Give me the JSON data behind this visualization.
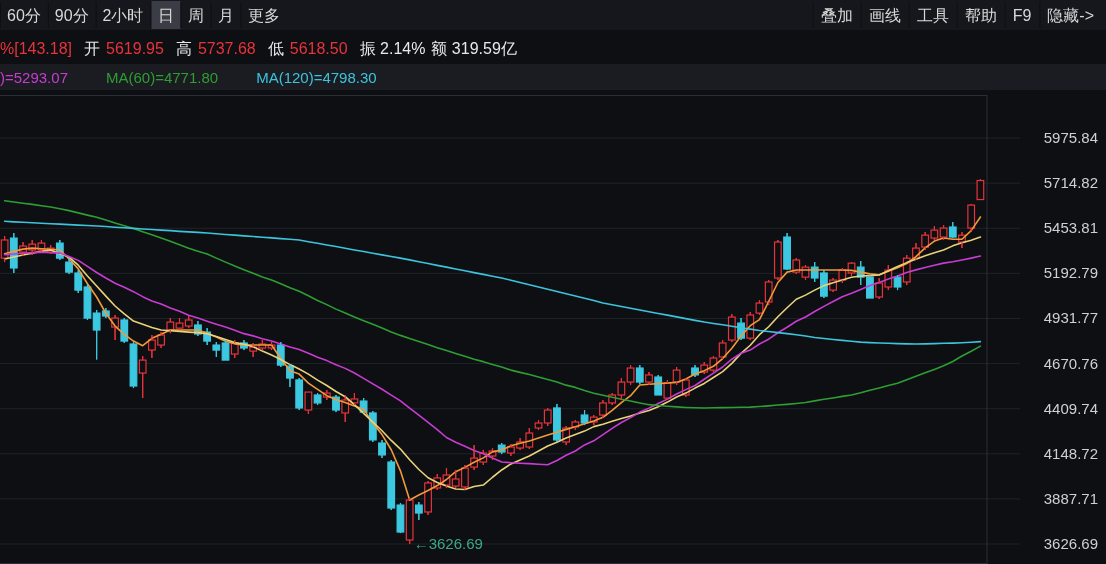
{
  "chart_data": {
    "type": "candlestick",
    "categories": [
      null,
      null,
      null,
      null,
      null,
      null,
      null,
      null,
      null,
      null,
      null,
      null,
      null,
      null,
      null,
      null,
      null,
      null,
      null,
      null,
      null,
      null,
      null,
      null,
      null,
      null,
      null,
      null,
      null,
      null,
      null,
      null,
      null,
      null,
      null,
      null,
      null,
      null,
      null,
      null,
      null,
      null,
      null,
      null,
      null,
      null,
      null,
      null,
      null,
      null,
      null,
      null,
      null,
      null,
      null,
      null,
      null,
      null,
      null,
      null,
      null,
      null,
      null,
      null,
      null,
      null,
      null,
      null,
      null,
      null,
      null,
      null,
      null,
      null,
      null,
      null,
      null,
      null,
      null,
      null,
      null,
      null,
      null,
      null,
      null,
      null,
      null,
      null,
      null,
      null,
      null,
      null,
      null,
      null,
      null,
      null,
      null,
      null,
      null,
      null,
      null,
      null,
      null,
      null,
      null,
      null,
      null
    ],
    "ohlc": [
      [
        5281,
        5409,
        5258,
        5386
      ],
      [
        5397,
        5426,
        5195,
        5224
      ],
      [
        5316,
        5374,
        5293,
        5351
      ],
      [
        5328,
        5386,
        5299,
        5362
      ],
      [
        5328,
        5386,
        5316,
        5368
      ],
      [
        5316,
        5357,
        5305,
        5339
      ],
      [
        5368,
        5386,
        5270,
        5281
      ],
      [
        5258,
        5281,
        5189,
        5200
      ],
      [
        5195,
        5212,
        5079,
        5096
      ],
      [
        5114,
        5131,
        4923,
        4934
      ],
      [
        4963,
        4981,
        4694,
        4865
      ],
      [
        4975,
        4992,
        4934,
        4946
      ],
      [
        4882,
        4952,
        4807,
        4934
      ],
      [
        4923,
        4934,
        4790,
        4801
      ],
      [
        4784,
        4795,
        4529,
        4541
      ],
      [
        4616,
        4714,
        4471,
        4691
      ],
      [
        4749,
        4836,
        4703,
        4807
      ],
      [
        4778,
        4853,
        4761,
        4836
      ],
      [
        4865,
        4934,
        4847,
        4911
      ],
      [
        4876,
        4934,
        4865,
        4905
      ],
      [
        4888,
        4946,
        4876,
        4923
      ],
      [
        4894,
        4917,
        4830,
        4842
      ],
      [
        4853,
        4876,
        4778,
        4801
      ],
      [
        4778,
        4795,
        4709,
        4749
      ],
      [
        4790,
        4807,
        4691,
        4691
      ],
      [
        4726,
        4807,
        4703,
        4790
      ],
      [
        4790,
        4807,
        4749,
        4761
      ],
      [
        4743,
        4790,
        4709,
        4766
      ],
      [
        4761,
        4807,
        4749,
        4784
      ],
      [
        4761,
        4795,
        4749,
        4778
      ],
      [
        4778,
        4795,
        4651,
        4662
      ],
      [
        4656,
        4668,
        4535,
        4587
      ],
      [
        4576,
        4587,
        4402,
        4414
      ],
      [
        4402,
        4506,
        4379,
        4506
      ],
      [
        4489,
        4500,
        4431,
        4443
      ],
      [
        4477,
        4518,
        4460,
        4500
      ],
      [
        4477,
        4489,
        4390,
        4402
      ],
      [
        4385,
        4489,
        4333,
        4460
      ],
      [
        4443,
        4500,
        4431,
        4466
      ],
      [
        4454,
        4471,
        4385,
        4390
      ],
      [
        4385,
        4396,
        4217,
        4229
      ],
      [
        4211,
        4229,
        4124,
        4142
      ],
      [
        4101,
        4113,
        3823,
        3835
      ],
      [
        3852,
        3864,
        3690,
        3696
      ],
      [
        3650,
        3893,
        3626.69,
        3881
      ],
      [
        3852,
        3870,
        3766,
        3806
      ],
      [
        3812,
        3991,
        3794,
        3980
      ],
      [
        3951,
        4032,
        3939,
        4009
      ],
      [
        3968,
        4066,
        3951,
        4026
      ],
      [
        3962,
        4055,
        3951,
        4003
      ],
      [
        3957,
        4084,
        3939,
        4066
      ],
      [
        4072,
        4199,
        4055,
        4124
      ],
      [
        4101,
        4171,
        4084,
        4153
      ],
      [
        4136,
        4182,
        4113,
        4165
      ],
      [
        4199,
        4211,
        4147,
        4159
      ],
      [
        4153,
        4205,
        4136,
        4188
      ],
      [
        4182,
        4240,
        4171,
        4217
      ],
      [
        4188,
        4298,
        4176,
        4269
      ],
      [
        4298,
        4344,
        4286,
        4327
      ],
      [
        4327,
        4414,
        4309,
        4402
      ],
      [
        4414,
        4437,
        4217,
        4229
      ],
      [
        4217,
        4309,
        4199,
        4298
      ],
      [
        4304,
        4344,
        4286,
        4333
      ],
      [
        4373,
        4402,
        4315,
        4327
      ],
      [
        4333,
        4373,
        4315,
        4361
      ],
      [
        4373,
        4460,
        4356,
        4443
      ],
      [
        4443,
        4500,
        4431,
        4489
      ],
      [
        4489,
        4587,
        4460,
        4564
      ],
      [
        4564,
        4662,
        4547,
        4645
      ],
      [
        4645,
        4662,
        4552,
        4564
      ],
      [
        4564,
        4622,
        4547,
        4605
      ],
      [
        4593,
        4605,
        4489,
        4489
      ],
      [
        4471,
        4576,
        4460,
        4558
      ],
      [
        4564,
        4651,
        4547,
        4633
      ],
      [
        4489,
        4587,
        4477,
        4576
      ],
      [
        4645,
        4662,
        4593,
        4605
      ],
      [
        4622,
        4680,
        4610,
        4662
      ],
      [
        4633,
        4714,
        4622,
        4703
      ],
      [
        4709,
        4807,
        4697,
        4790
      ],
      [
        4807,
        4957,
        4795,
        4940
      ],
      [
        4905,
        4934,
        4807,
        4818
      ],
      [
        4818,
        4969,
        4807,
        4952
      ],
      [
        4963,
        5038,
        4952,
        5021
      ],
      [
        5027,
        5154,
        5010,
        5143
      ],
      [
        5166,
        5386,
        5154,
        5374
      ],
      [
        5403,
        5426,
        5212,
        5218
      ],
      [
        5200,
        5281,
        5189,
        5270
      ],
      [
        5171,
        5241,
        5154,
        5229
      ],
      [
        5229,
        5258,
        5143,
        5166
      ],
      [
        5195,
        5212,
        5050,
        5061
      ],
      [
        5096,
        5166,
        5085,
        5154
      ],
      [
        5154,
        5224,
        5137,
        5212
      ],
      [
        5195,
        5258,
        5177,
        5252
      ],
      [
        5229,
        5264,
        5125,
        5171
      ],
      [
        5171,
        5183,
        5050,
        5050
      ],
      [
        5056,
        5166,
        5044,
        5137
      ],
      [
        5114,
        5241,
        5096,
        5212
      ],
      [
        5171,
        5183,
        5096,
        5114
      ],
      [
        5143,
        5299,
        5125,
        5281
      ],
      [
        5281,
        5368,
        5270,
        5339
      ],
      [
        5345,
        5432,
        5328,
        5414
      ],
      [
        5397,
        5466,
        5386,
        5443
      ],
      [
        5403,
        5472,
        5386,
        5455
      ],
      [
        5461,
        5490,
        5397,
        5403
      ],
      [
        5374,
        5432,
        5339,
        5414
      ],
      [
        5455,
        5594,
        5432,
        5588
      ],
      [
        5619.95,
        5737.68,
        5618.5,
        5730
      ]
    ],
    "series": [
      {
        "type": "line",
        "color": "#f29a3a",
        "values": [
          5306,
          5320,
          5333,
          5339,
          5335,
          5332,
          5328,
          5277,
          5219,
          5133,
          5056,
          4962,
          4888,
          4840,
          4801,
          4774,
          4817,
          4840,
          4865,
          4865,
          4865,
          4865,
          4846,
          4825,
          4800,
          4785,
          4778,
          4778,
          4778,
          4778,
          4700,
          4630,
          4610,
          4558,
          4521,
          4485,
          4463,
          4445,
          4425,
          4407,
          4325,
          4260,
          4172,
          4050,
          3881,
          3910,
          3936,
          3965,
          4000,
          4045,
          4070,
          4100,
          4125,
          4160,
          4171,
          4195,
          4210,
          4223,
          4240,
          4257,
          4273,
          4290,
          4305,
          4322,
          4338,
          4360,
          4400,
          4445,
          4485,
          4547,
          4551,
          4555,
          4558,
          4562,
          4582,
          4610,
          4630,
          4655,
          4700,
          4760,
          4830,
          4890,
          4925,
          5030,
          5140,
          5200,
          5212,
          5212,
          5212,
          5212,
          5212,
          5212,
          5210,
          5200,
          5190,
          5185,
          5205,
          5225,
          5250,
          5290,
          5340,
          5380,
          5397,
          5390,
          5390,
          5440,
          5519
        ]
      },
      {
        "type": "line",
        "color": "#e8d27a",
        "values": [
          5276,
          5287,
          5299,
          5310,
          5320,
          5328,
          5307,
          5287,
          5240,
          5178,
          5120,
          5061,
          5004,
          4958,
          4917,
          4898,
          4880,
          4865,
          4861,
          4857,
          4853,
          4850,
          4843,
          4827,
          4810,
          4793,
          4783,
          4768,
          4743,
          4720,
          4694,
          4665,
          4639,
          4610,
          4575,
          4544,
          4509,
          4479,
          4433,
          4383,
          4332,
          4282,
          4226,
          4176,
          4114,
          4058,
          4010,
          3983,
          3962,
          3945,
          3942,
          3959,
          3968,
          4013,
          4055,
          4090,
          4113,
          4136,
          4165,
          4194,
          4216,
          4240,
          4260,
          4280,
          4306,
          4320,
          4337,
          4353,
          4367,
          4385,
          4399,
          4421,
          4448,
          4477,
          4500,
          4529,
          4556,
          4590,
          4624,
          4672,
          4730,
          4777,
          4838,
          4884,
          4942,
          4994,
          5043,
          5067,
          5096,
          5122,
          5138,
          5155,
          5170,
          5178,
          5180,
          5183,
          5208,
          5233,
          5255,
          5275,
          5295,
          5312,
          5328,
          5352,
          5370,
          5385,
          5403
        ]
      },
      {
        "type": "line",
        "name": ")=5293.07",
        "color": "#c83cd2",
        "values": [
          5301,
          5305,
          5309,
          5313,
          5316,
          5313,
          5310,
          5290,
          5268,
          5233,
          5198,
          5166,
          5136,
          5113,
          5087,
          5058,
          5033,
          5015,
          4992,
          4974,
          4951,
          4934,
          4916,
          4899,
          4882,
          4864,
          4844,
          4831,
          4815,
          4801,
          4784,
          4767,
          4752,
          4731,
          4708,
          4688,
          4664,
          4643,
          4616,
          4585,
          4553,
          4522,
          4488,
          4455,
          4413,
          4372,
          4330,
          4288,
          4243,
          4216,
          4192,
          4168,
          4149,
          4125,
          4101,
          4097,
          4094,
          4092,
          4088,
          4085,
          4110,
          4140,
          4165,
          4200,
          4224,
          4260,
          4296,
          4330,
          4358,
          4390,
          4413,
          4440,
          4465,
          4495,
          4520,
          4544,
          4580,
          4616,
          4651,
          4696,
          4731,
          4749,
          4784,
          4812,
          4849,
          4881,
          4916,
          4940,
          4972,
          5002,
          5030,
          5058,
          5078,
          5100,
          5122,
          5140,
          5160,
          5178,
          5198,
          5213,
          5227,
          5240,
          5252,
          5260,
          5270,
          5281,
          5293
        ]
      },
      {
        "type": "line",
        "name": "MA(60)=4771.80",
        "color": "#2e9e32",
        "values": [
          5613,
          5606,
          5599,
          5592,
          5584,
          5577,
          5567,
          5556,
          5543,
          5530,
          5518,
          5502,
          5484,
          5468,
          5452,
          5433,
          5416,
          5397,
          5378,
          5358,
          5338,
          5321,
          5305,
          5281,
          5258,
          5235,
          5214,
          5193,
          5172,
          5154,
          5133,
          5110,
          5089,
          5063,
          5036,
          5012,
          4986,
          4963,
          4940,
          4919,
          4898,
          4877,
          4854,
          4834,
          4816,
          4799,
          4781,
          4763,
          4746,
          4729,
          4713,
          4696,
          4682,
          4665,
          4651,
          4633,
          4620,
          4608,
          4593,
          4579,
          4564,
          4546,
          4533,
          4515,
          4499,
          4487,
          4476,
          4464,
          4454,
          4443,
          4433,
          4428,
          4424,
          4420,
          4417,
          4415,
          4414,
          4415,
          4416,
          4417,
          4418,
          4419,
          4422,
          4426,
          4431,
          4435,
          4440,
          4446,
          4455,
          4464,
          4472,
          4481,
          4489,
          4502,
          4517,
          4529,
          4544,
          4557,
          4577,
          4597,
          4617,
          4637,
          4658,
          4683,
          4715,
          4742,
          4772
        ]
      },
      {
        "type": "line",
        "name": "MA(120)=4798.30",
        "color": "#3cc4dc",
        "values": [
          5494,
          5491,
          5489,
          5486,
          5483,
          5480,
          5478,
          5475,
          5472,
          5470,
          5467,
          5464,
          5460,
          5457,
          5453,
          5450,
          5447,
          5443,
          5440,
          5436,
          5433,
          5430,
          5426,
          5422,
          5418,
          5414,
          5410,
          5406,
          5402,
          5398,
          5394,
          5390,
          5386,
          5376,
          5367,
          5357,
          5348,
          5338,
          5328,
          5319,
          5309,
          5300,
          5290,
          5281,
          5271,
          5260,
          5250,
          5239,
          5229,
          5218,
          5208,
          5197,
          5187,
          5176,
          5166,
          5153,
          5140,
          5127,
          5114,
          5101,
          5088,
          5075,
          5062,
          5049,
          5036,
          5021,
          5011,
          5001,
          4991,
          4981,
          4971,
          4961,
          4951,
          4941,
          4931,
          4921,
          4911,
          4903,
          4895,
          4887,
          4878,
          4870,
          4862,
          4856,
          4850,
          4844,
          4838,
          4830,
          4822,
          4816,
          4810,
          4805,
          4800,
          4795,
          4792,
          4790,
          4788,
          4786,
          4785,
          4784,
          4785,
          4786,
          4788,
          4789,
          4791,
          4794,
          4798
        ]
      }
    ],
    "ylim": [
      3511,
      6225
    ],
    "yticks": [
      3626.69,
      3887.71,
      4148.72,
      4409.74,
      4670.76,
      4931.77,
      5192.79,
      5453.81,
      5714.82,
      5975.84
    ],
    "grid": "y",
    "legend": "top left",
    "annotations": [
      "60分",
      "90分",
      "2小时",
      "日",
      "周",
      "月",
      "更多",
      "叠加",
      "画线",
      "工具",
      "帮助",
      "F9",
      "隐藏->",
      "%[143.18]",
      "开",
      "5619.95",
      "高",
      "5737.68",
      "低",
      "5618.50",
      "振 2.14%",
      "额 319.59亿",
      "←3626.69"
    ]
  }
}
